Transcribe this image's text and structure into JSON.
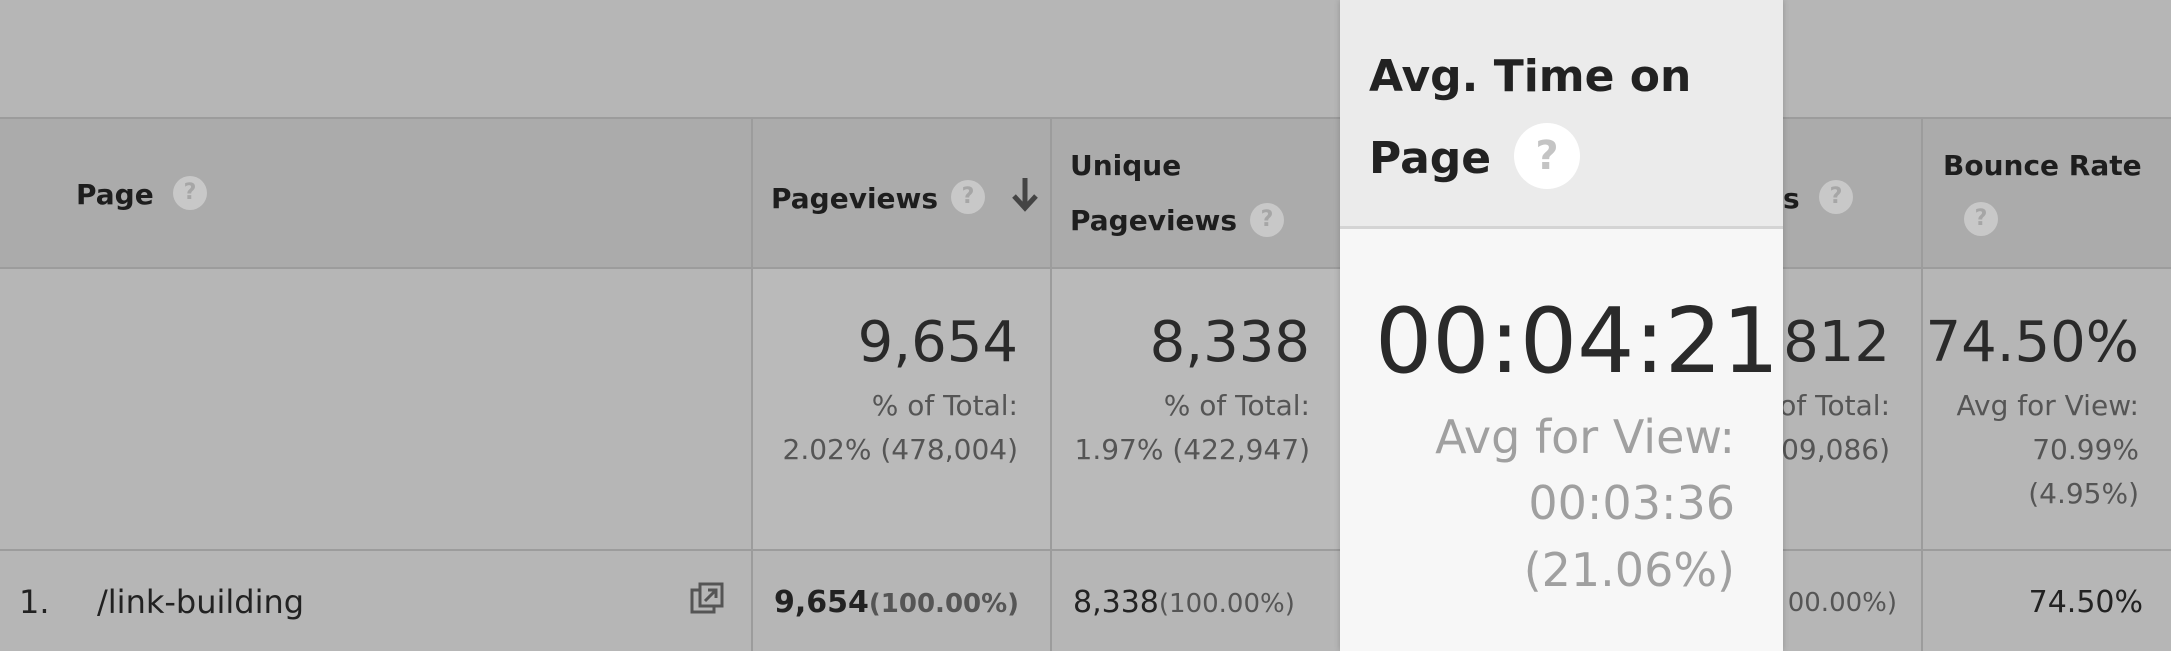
{
  "table": {
    "headers": {
      "page": "Page",
      "pageviews": "Pageviews",
      "unique": [
        "Unique",
        "Pageviews"
      ],
      "entrances": "s",
      "bounce": "Bounce Rate"
    },
    "totals": {
      "pageviews": [
        "9,654",
        "% of Total:",
        "2.02% (478,004)"
      ],
      "unique": [
        "8,338",
        "% of Total:",
        "1.97% (422,947)"
      ],
      "entrances": [
        ",812",
        "of Total:",
        "09,086)"
      ],
      "bounce": [
        "74.50%",
        "Avg for View:",
        "70.99%",
        "(4.95%)"
      ]
    },
    "rows": [
      {
        "index": "1.",
        "page": "/link-building",
        "pageviews": "9,654",
        "pageviews_pct": "(100.00%)",
        "unique": "8,338",
        "unique_pct": "(100.00%)",
        "entrances_pct": "00.00%)",
        "bounce": "74.50%"
      }
    ]
  },
  "spotlight": {
    "header": [
      "Avg. Time on",
      "Page"
    ],
    "value": "00:04:21",
    "sub": [
      "Avg for View:",
      "00:03:36",
      "(21.06%)"
    ]
  }
}
